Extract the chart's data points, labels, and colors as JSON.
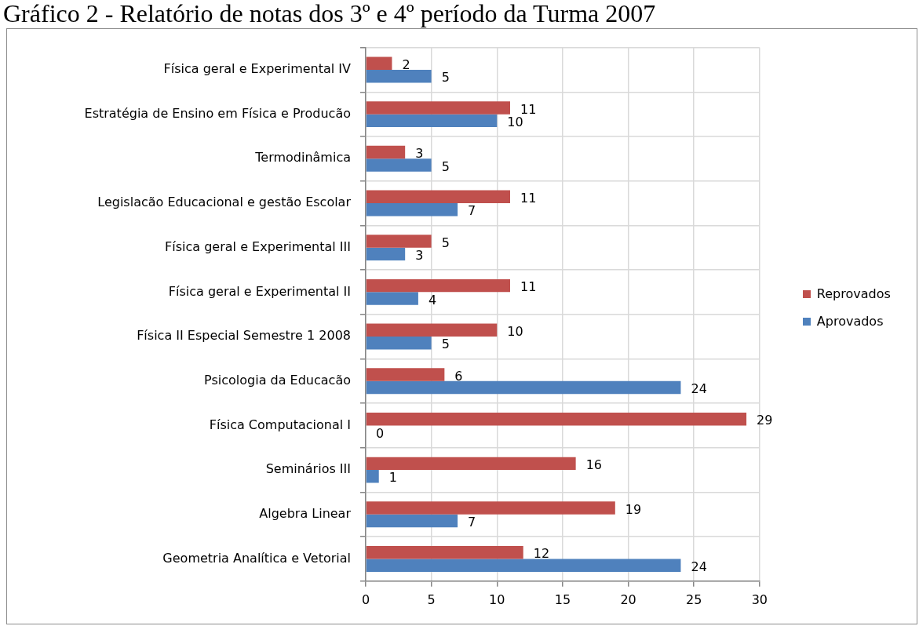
{
  "chart_data": {
    "type": "bar",
    "title": "Gráfico 2 - Relatório de notas dos 3º e 4º período da Turma 2007",
    "orientation": "horizontal",
    "categories": [
      "Física geral e Experimental IV",
      "Estratégia de Ensino em Física e Producão",
      "Termodinâmica",
      "Legislacão Educacional e gestão Escolar",
      "Física geral e Experimental III",
      "Física geral e Experimental II",
      "Física II Especial Semestre 1 2008",
      "Psicologia da Educacão",
      "Física Computacional I",
      "Seminários III",
      "Algebra Linear",
      "Geometria Analítica e Vetorial"
    ],
    "series": [
      {
        "name": "Reprovados",
        "color": "#c0504d",
        "values": [
          2,
          11,
          3,
          11,
          5,
          11,
          10,
          6,
          29,
          16,
          19,
          12
        ]
      },
      {
        "name": "Aprovados",
        "color": "#4f81bd",
        "values": [
          5,
          10,
          5,
          7,
          3,
          4,
          5,
          24,
          0,
          1,
          7,
          24
        ]
      }
    ],
    "xlim": [
      0,
      30
    ],
    "xticks": [
      0,
      5,
      10,
      15,
      20,
      25,
      30
    ],
    "grid": true,
    "legend": "right",
    "data_labels": true
  }
}
